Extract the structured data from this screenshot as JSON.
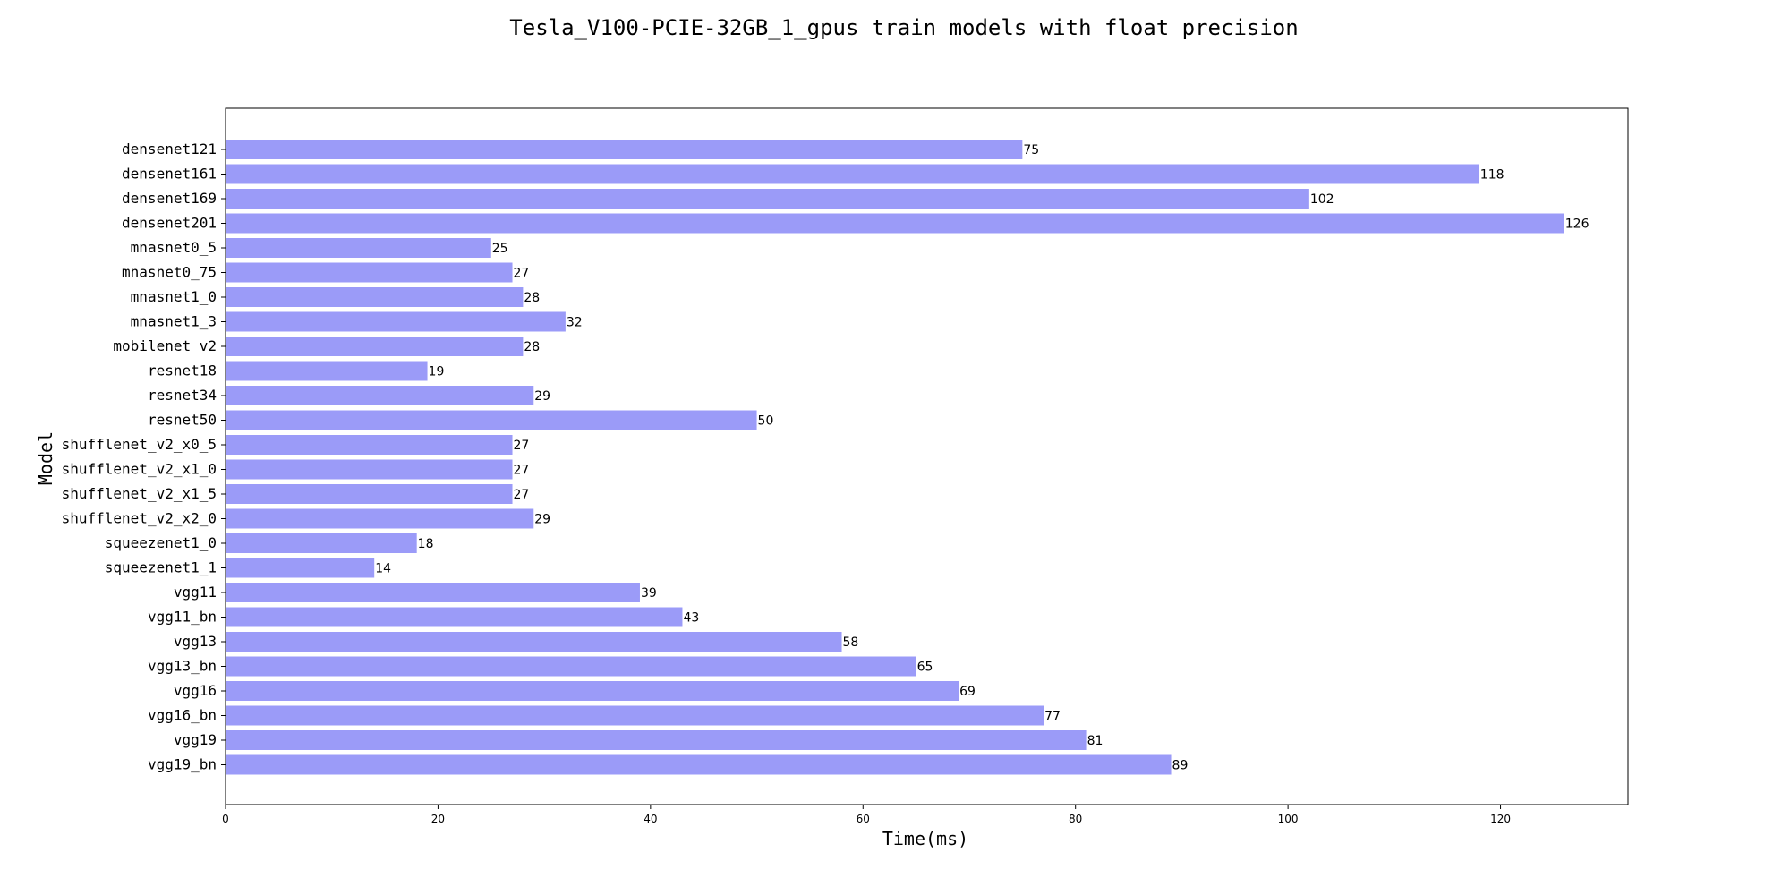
{
  "chart_data": {
    "type": "bar",
    "orientation": "horizontal",
    "title": "Tesla_V100-PCIE-32GB_1_gpus train models with float precision",
    "xlabel": "Time(ms)",
    "ylabel": "Model",
    "xlim": [
      0,
      132
    ],
    "xticks": [
      0,
      20,
      40,
      60,
      80,
      100,
      120
    ],
    "grid": false,
    "bar_color": "#9b9bf8",
    "categories": [
      "densenet121",
      "densenet161",
      "densenet169",
      "densenet201",
      "mnasnet0_5",
      "mnasnet0_75",
      "mnasnet1_0",
      "mnasnet1_3",
      "mobilenet_v2",
      "resnet18",
      "resnet34",
      "resnet50",
      "shufflenet_v2_x0_5",
      "shufflenet_v2_x1_0",
      "shufflenet_v2_x1_5",
      "shufflenet_v2_x2_0",
      "squeezenet1_0",
      "squeezenet1_1",
      "vgg11",
      "vgg11_bn",
      "vgg13",
      "vgg13_bn",
      "vgg16",
      "vgg16_bn",
      "vgg19",
      "vgg19_bn"
    ],
    "values": [
      75,
      118,
      102,
      126,
      25,
      27,
      28,
      32,
      28,
      19,
      29,
      50,
      27,
      27,
      27,
      29,
      18,
      14,
      39,
      43,
      58,
      65,
      69,
      77,
      81,
      89
    ]
  }
}
